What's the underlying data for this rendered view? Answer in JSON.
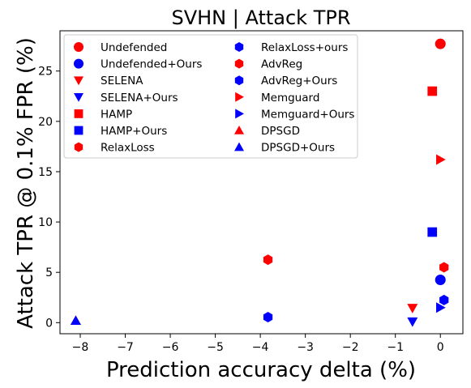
{
  "chart_data": {
    "type": "scatter",
    "title": "SVHN | Attack TPR",
    "xlabel": "Prediction accuracy delta (%)",
    "ylabel": "Attack TPR @ 0.1% FPR (%)",
    "xlim": [
      -8.45,
      0.5
    ],
    "ylim": [
      -1.1,
      29.0
    ],
    "xticks": [
      -8,
      -7,
      -6,
      -5,
      -4,
      -3,
      -2,
      -1,
      0
    ],
    "xtick_labels": [
      "−8",
      "−7",
      "−6",
      "−5",
      "−4",
      "−3",
      "−2",
      "−1",
      "0"
    ],
    "yticks": [
      0,
      5,
      10,
      15,
      20,
      25
    ],
    "ytick_labels": [
      "0",
      "5",
      "10",
      "15",
      "20",
      "25"
    ],
    "grid": false,
    "legend_placement": "top-left",
    "legend_columns": 2,
    "series": [
      {
        "name": "Undefended",
        "marker": "circle",
        "color": "#ff0000",
        "points": [
          [
            0.0,
            27.7
          ]
        ]
      },
      {
        "name": "Undefended+Ours",
        "marker": "circle",
        "color": "#0000ff",
        "points": [
          [
            0.0,
            4.25
          ]
        ]
      },
      {
        "name": "SELENA",
        "marker": "triangle-down",
        "color": "#ff0000",
        "points": [
          [
            -0.62,
            1.45
          ]
        ]
      },
      {
        "name": "SELENA+Ours",
        "marker": "triangle-down",
        "color": "#0000ff",
        "points": [
          [
            -0.62,
            0.1
          ]
        ]
      },
      {
        "name": "HAMP",
        "marker": "square",
        "color": "#ff0000",
        "points": [
          [
            -0.18,
            23.0
          ]
        ]
      },
      {
        "name": "HAMP+Ours",
        "marker": "square",
        "color": "#0000ff",
        "points": [
          [
            -0.18,
            9.0
          ]
        ]
      },
      {
        "name": "RelaxLoss",
        "marker": "hexagon",
        "color": "#ff0000",
        "points": [
          [
            -3.83,
            6.25
          ]
        ]
      },
      {
        "name": "RelaxLoss+ours",
        "marker": "hexagon",
        "color": "#0000ff",
        "points": [
          [
            -3.83,
            0.55
          ]
        ]
      },
      {
        "name": "AdvReg",
        "marker": "hexagon",
        "color": "#ff0000",
        "points": [
          [
            0.08,
            5.5
          ]
        ]
      },
      {
        "name": "AdvReg+Ours",
        "marker": "hexagon",
        "color": "#0000ff",
        "points": [
          [
            0.08,
            2.25
          ]
        ]
      },
      {
        "name": "Memguard",
        "marker": "triangle-right",
        "color": "#ff0000",
        "points": [
          [
            0.0,
            16.2
          ]
        ]
      },
      {
        "name": "Memguard+Ours",
        "marker": "triangle-right",
        "color": "#0000ff",
        "points": [
          [
            0.0,
            1.5
          ]
        ]
      },
      {
        "name": "DPSGD",
        "marker": "triangle-up",
        "color": "#ff0000",
        "points": [
          [
            -8.1,
            0.2
          ]
        ]
      },
      {
        "name": "DPSGD+Ours",
        "marker": "triangle-up",
        "color": "#0000ff",
        "points": [
          [
            -8.1,
            0.2
          ]
        ]
      }
    ]
  }
}
